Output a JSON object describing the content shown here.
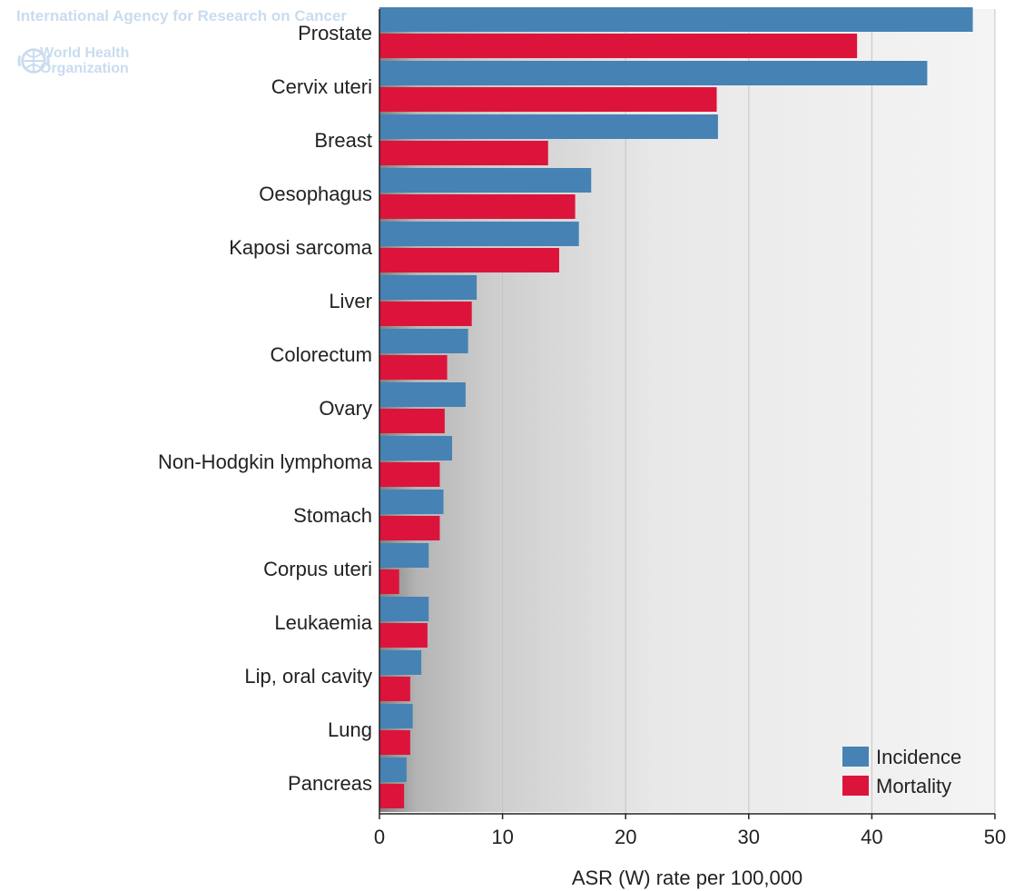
{
  "watermark": {
    "agency": "International Agency for Research on Cancer",
    "org_name": "World Health Organization",
    "emblem_icon": "who-emblem-icon"
  },
  "chart_data": {
    "type": "bar",
    "orientation": "horizontal",
    "categories": [
      "Prostate",
      "Cervix uteri",
      "Breast",
      "Oesophagus",
      "Kaposi sarcoma",
      "Liver",
      "Colorectum",
      "Ovary",
      "Non-Hodgkin lymphoma",
      "Stomach",
      "Corpus uteri",
      "Leukaemia",
      "Lip, oral cavity",
      "Lung",
      "Pancreas"
    ],
    "series": [
      {
        "name": "Incidence",
        "color": "#4682b4",
        "values": [
          48.2,
          44.5,
          27.5,
          17.2,
          16.2,
          7.9,
          7.2,
          7.0,
          5.9,
          5.2,
          4.0,
          4.0,
          3.4,
          2.7,
          2.2
        ]
      },
      {
        "name": "Mortality",
        "color": "#dc143c",
        "values": [
          38.8,
          27.4,
          13.7,
          15.9,
          14.6,
          7.5,
          5.5,
          5.3,
          4.9,
          4.9,
          1.6,
          3.9,
          2.5,
          2.5,
          2.0
        ]
      }
    ],
    "title": "",
    "xlabel": "ASR (W) rate per 100,000",
    "ylabel": "",
    "xlim": [
      0,
      50
    ],
    "xticks": [
      "0",
      "10",
      "20",
      "30",
      "40",
      "50"
    ],
    "grid": "vertical",
    "legend_position": "bottom-right"
  }
}
